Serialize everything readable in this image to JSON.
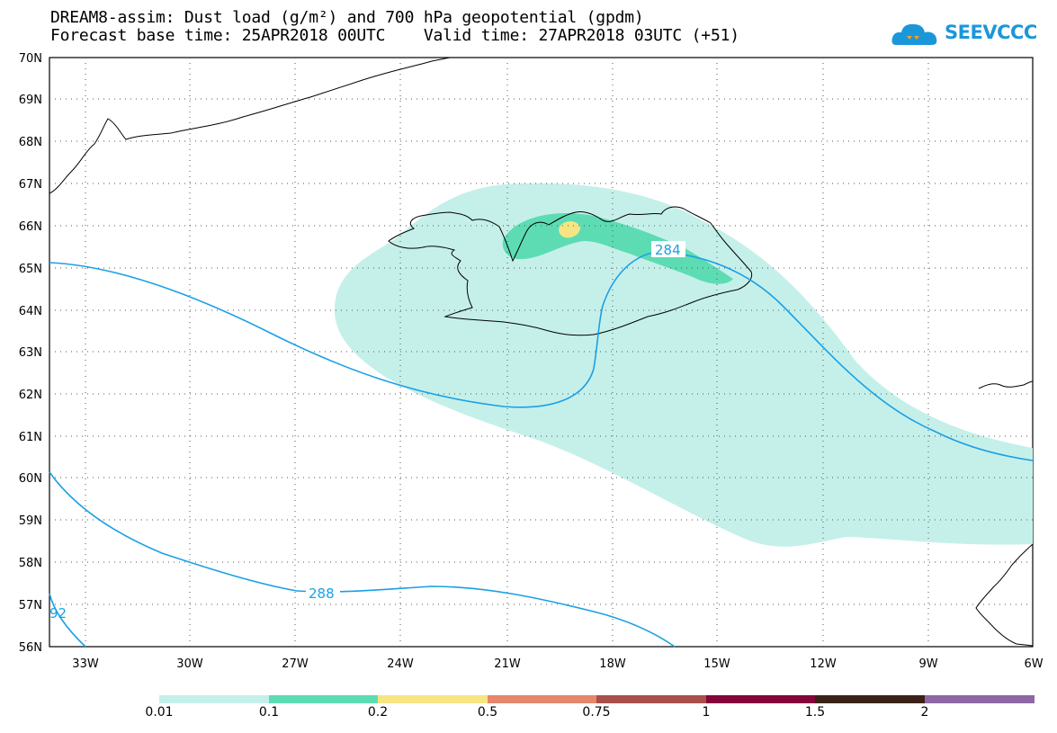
{
  "header": {
    "title_line1": "DREAM8-assim: Dust load (g/m²) and 700 hPa geopotential (gpdm)",
    "title_line2": "Forecast base time: 25APR2018 00UTC    Valid time: 27APR2018 03UTC (+51)"
  },
  "logo": {
    "text": "SEEVCCC",
    "icon": "cloud-logo-icon",
    "color": "#1b97d9"
  },
  "axes": {
    "lon_labels": [
      "33W",
      "30W",
      "27W",
      "24W",
      "21W",
      "18W",
      "15W",
      "12W",
      "9W",
      "6W"
    ],
    "lat_labels": [
      "70N",
      "69N",
      "68N",
      "67N",
      "66N",
      "65N",
      "64N",
      "63N",
      "62N",
      "61N",
      "60N",
      "59N",
      "58N",
      "57N",
      "56N"
    ]
  },
  "contours": {
    "labels": [
      "284",
      "288",
      "92"
    ],
    "color": "#1aa0e6"
  },
  "colorbar": {
    "labels": [
      "0.01",
      "0.1",
      "0.2",
      "0.5",
      "0.75",
      "1",
      "1.5",
      "2"
    ],
    "colors": [
      "#c5f0ea",
      "#5ddcb3",
      "#f7e583",
      "#e5876a",
      "#a9504a",
      "#84063a",
      "#3b2218",
      "#8e68a3"
    ]
  }
}
